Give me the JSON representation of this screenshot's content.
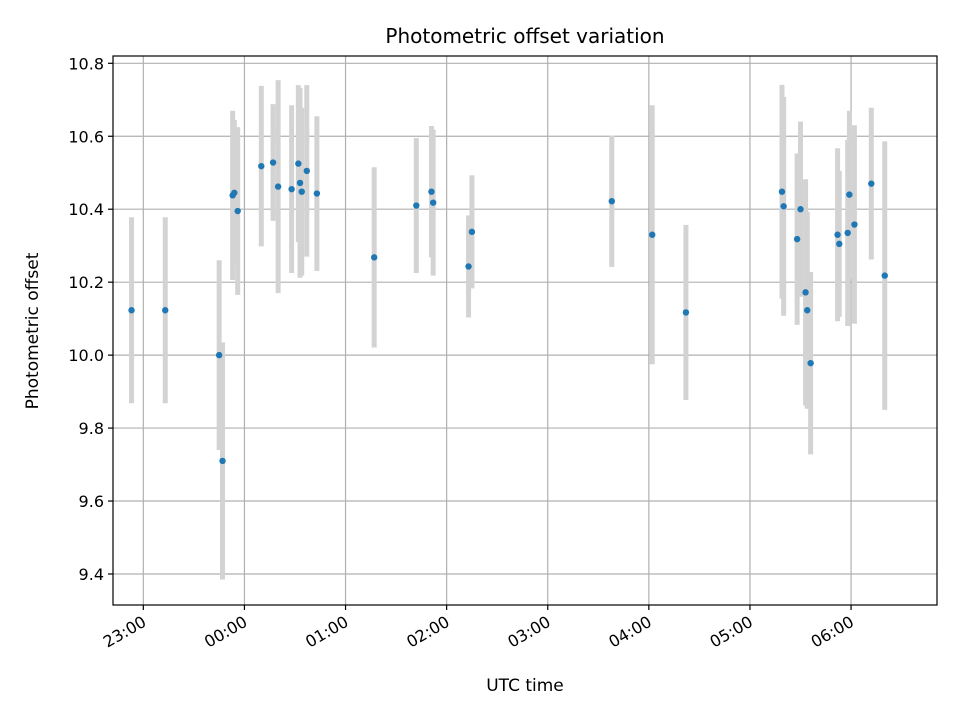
{
  "chart_data": {
    "type": "scatter",
    "title": "Photometric offset variation",
    "xlabel": "UTC time",
    "ylabel": "Photometric offset",
    "x_ticks": [
      "23:00",
      "00:00",
      "01:00",
      "02:00",
      "03:00",
      "04:00",
      "05:00",
      "06:00"
    ],
    "y_ticks": [
      "9.4",
      "9.6",
      "9.8",
      "10.0",
      "10.2",
      "10.4",
      "10.6",
      "10.8"
    ],
    "ylim": [
      9.315,
      10.82
    ],
    "xlim": [
      "22:42",
      "06:51"
    ],
    "grid": true,
    "colors": {
      "point": "#1f77b4",
      "errorbar": "#d3d3d3",
      "grid": "#b0b0b0"
    },
    "series": [
      {
        "points": [
          {
            "t": "22:53",
            "y": 10.123,
            "err": 0.255
          },
          {
            "t": "23:13",
            "y": 10.123,
            "err": 0.255
          },
          {
            "t": "23:45",
            "y": 10.0,
            "err": 0.26
          },
          {
            "t": "23:47",
            "y": 9.71,
            "err": 0.325
          },
          {
            "t": "23:53",
            "y": 10.438,
            "err": 0.232
          },
          {
            "t": "23:54",
            "y": 10.445,
            "err": 0.2
          },
          {
            "t": "23:56",
            "y": 10.395,
            "err": 0.23
          },
          {
            "t": "00:10",
            "y": 10.518,
            "err": 0.22
          },
          {
            "t": "00:17",
            "y": 10.528,
            "err": 0.16
          },
          {
            "t": "00:20",
            "y": 10.462,
            "err": 0.292
          },
          {
            "t": "00:28",
            "y": 10.455,
            "err": 0.23
          },
          {
            "t": "00:32",
            "y": 10.525,
            "err": 0.215
          },
          {
            "t": "00:33",
            "y": 10.472,
            "err": 0.26
          },
          {
            "t": "00:34",
            "y": 10.448,
            "err": 0.23
          },
          {
            "t": "00:37",
            "y": 10.505,
            "err": 0.235
          },
          {
            "t": "00:43",
            "y": 10.443,
            "err": 0.212
          },
          {
            "t": "01:17",
            "y": 10.268,
            "err": 0.247
          },
          {
            "t": "01:42",
            "y": 10.41,
            "err": 0.185
          },
          {
            "t": "01:51",
            "y": 10.448,
            "err": 0.18
          },
          {
            "t": "01:52",
            "y": 10.418,
            "err": 0.2
          },
          {
            "t": "02:13",
            "y": 10.243,
            "err": 0.14
          },
          {
            "t": "02:15",
            "y": 10.338,
            "err": 0.155
          },
          {
            "t": "03:38",
            "y": 10.422,
            "err": 0.18
          },
          {
            "t": "04:02",
            "y": 10.33,
            "err": 0.355
          },
          {
            "t": "04:22",
            "y": 10.117,
            "err": 0.24
          },
          {
            "t": "05:19",
            "y": 10.448,
            "err": 0.293
          },
          {
            "t": "05:20",
            "y": 10.408,
            "err": 0.3
          },
          {
            "t": "05:28",
            "y": 10.318,
            "err": 0.235
          },
          {
            "t": "05:30",
            "y": 10.4,
            "err": 0.24
          },
          {
            "t": "05:33",
            "y": 10.172,
            "err": 0.31
          },
          {
            "t": "05:34",
            "y": 10.123,
            "err": 0.27
          },
          {
            "t": "05:36",
            "y": 9.978,
            "err": 0.25
          },
          {
            "t": "05:52",
            "y": 10.33,
            "err": 0.237
          },
          {
            "t": "05:53",
            "y": 10.305,
            "err": 0.2
          },
          {
            "t": "05:58",
            "y": 10.335,
            "err": 0.255
          },
          {
            "t": "05:59",
            "y": 10.44,
            "err": 0.23
          },
          {
            "t": "06:02",
            "y": 10.358,
            "err": 0.272
          },
          {
            "t": "06:12",
            "y": 10.47,
            "err": 0.208
          },
          {
            "t": "06:20",
            "y": 10.218,
            "err": 0.368
          }
        ]
      }
    ]
  }
}
